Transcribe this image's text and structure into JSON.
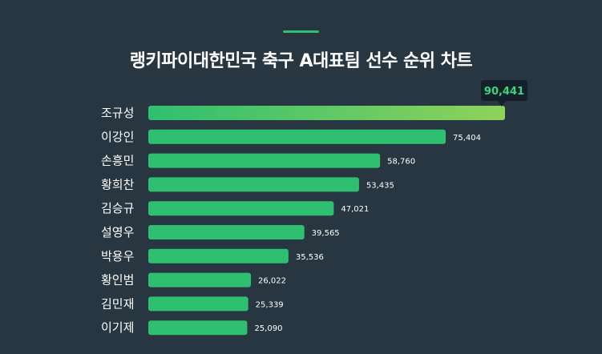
{
  "title": "랭키파이대한민국 축구 A대표팀 선수 순위 차트",
  "colors": {
    "background": "#273640",
    "bar": "#2fbf71",
    "bar_top_gradient_end": "#8fd25a",
    "callout_bg": "#14212a",
    "callout_text": "#3ed37d"
  },
  "chart_data": {
    "type": "bar",
    "orientation": "horizontal",
    "title": "랭키파이대한민국 축구 A대표팀 선수 순위 차트",
    "xlabel": "",
    "ylabel": "",
    "categories": [
      "조규성",
      "이강인",
      "손흥민",
      "황희찬",
      "김승규",
      "설영우",
      "박용우",
      "황인범",
      "김민재",
      "이기제"
    ],
    "values": [
      90441,
      75404,
      58760,
      53435,
      47021,
      39565,
      35536,
      26022,
      25339,
      25090
    ],
    "value_labels": [
      "90,441",
      "75,404",
      "58,760",
      "53,435",
      "47,021",
      "39,565",
      "35,536",
      "26,022",
      "25,339",
      "25,090"
    ],
    "grid": false,
    "legend": "none"
  }
}
